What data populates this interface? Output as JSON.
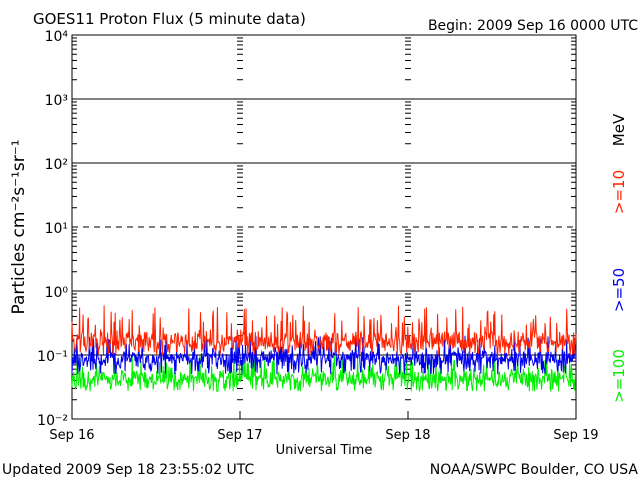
{
  "header": {
    "title": "GOES11 Proton Flux (5 minute data)",
    "begin": "Begin: 2009 Sep 16 0000 UTC"
  },
  "footer": {
    "updated": "Updated 2009 Sep 18 23:55:02 UTC",
    "credit": "NOAA/SWPC Boulder, CO USA"
  },
  "chart_data": {
    "type": "line",
    "title": "GOES11 Proton Flux (5 minute data)",
    "xlabel": "Universal Time",
    "ylabel": "Particles cm⁻²s⁻¹sr⁻¹",
    "yscale": "log",
    "ylim": [
      0.01,
      10000
    ],
    "xlim": [
      "2009-09-16 00:00",
      "2009-09-19 00:00"
    ],
    "x_ticks": [
      "Sep 16",
      "Sep 17",
      "Sep 18",
      "Sep 19"
    ],
    "y_ticks": [
      "10⁻²",
      "10⁻¹",
      "10⁰",
      "10¹",
      "10²",
      "10³",
      "10⁴"
    ],
    "y_tick_values": [
      0.01,
      0.1,
      1,
      10,
      100,
      1000,
      10000
    ],
    "legend_unit": "MeV",
    "legend_position": "right",
    "grid": "horizontal lines at 10⁰, 10¹ (dashed), 10², 10³",
    "series": [
      {
        "name": ">=10",
        "color": "#ff2200",
        "typical": 0.17,
        "range": [
          0.1,
          0.6
        ]
      },
      {
        "name": ">=50",
        "color": "#0000ee",
        "typical": 0.09,
        "range": [
          0.05,
          0.2
        ]
      },
      {
        "name": ">=100",
        "color": "#00ee00",
        "typical": 0.045,
        "range": [
          0.027,
          0.1
        ]
      }
    ]
  }
}
